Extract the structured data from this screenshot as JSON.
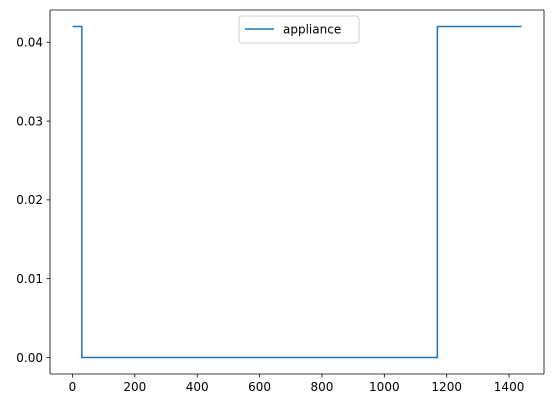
{
  "chart_data": {
    "type": "line",
    "xlim": [
      -72,
      1512
    ],
    "ylim": [
      -0.0021,
      0.0441
    ],
    "x_ticks": [
      0,
      200,
      400,
      600,
      800,
      1000,
      1200,
      1400
    ],
    "x_tick_labels": [
      "0",
      "200",
      "400",
      "600",
      "800",
      "1000",
      "1200",
      "1400"
    ],
    "y_ticks": [
      0.0,
      0.01,
      0.02,
      0.03,
      0.04
    ],
    "y_tick_labels": [
      "0.00",
      "0.01",
      "0.02",
      "0.03",
      "0.04"
    ],
    "grid": false,
    "legend_position": "upper center",
    "series": [
      {
        "name": "appliance",
        "color": "#1f77b4",
        "x": [
          0,
          30,
          30,
          1170,
          1170,
          1440
        ],
        "y": [
          0.042,
          0.042,
          0.0,
          0.0,
          0.042,
          0.042
        ]
      }
    ]
  }
}
